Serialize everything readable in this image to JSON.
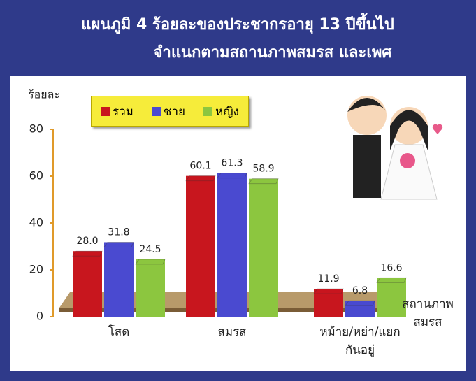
{
  "chart_data": {
    "type": "bar",
    "title": "แผนภูมิ 4  ร้อยละของประชากรอายุ 13 ปีขึ้นไป",
    "subtitle": "จำแนกตามสถานภาพสมรส และเพศ",
    "y_label": "ร้อยละ",
    "x_label": "สถานภาพสมรส",
    "categories": [
      "โสด",
      "สมรส",
      "หม้าย/หย่า/แยกกันอยู่"
    ],
    "series": [
      {
        "name": "รวม",
        "color": "#c8161e",
        "values": [
          28.0,
          60.1,
          11.9
        ],
        "value_labels": [
          "28.0",
          "60.1",
          "11.9"
        ]
      },
      {
        "name": "ชาย",
        "color": "#4a4ad0",
        "values": [
          31.8,
          61.3,
          6.8
        ],
        "value_labels": [
          "31.8",
          "61.3",
          "6.8"
        ]
      },
      {
        "name": "หญิง",
        "color": "#8cc63f",
        "values": [
          24.5,
          58.9,
          16.6
        ],
        "value_labels": [
          "24.5",
          "58.9",
          "16.6"
        ]
      }
    ],
    "ylim": [
      0,
      80
    ],
    "yticks": [
      0,
      20,
      40,
      60,
      80
    ],
    "grid": false,
    "legend": "top"
  }
}
